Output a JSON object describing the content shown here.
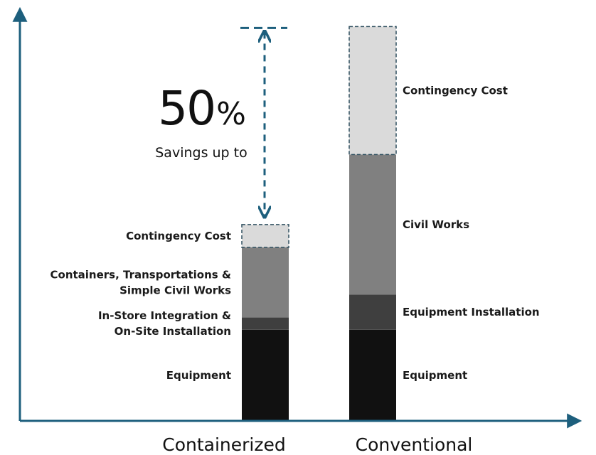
{
  "chart_data": {
    "type": "bar",
    "stacked": true,
    "categories": [
      "Containerized",
      "Conventional"
    ],
    "stacks": [
      {
        "category": "Containerized",
        "segments": [
          {
            "label": "Equipment",
            "value": 26,
            "color": "#111111",
            "dashed": false
          },
          {
            "label": "In-Store Integration & On-Site Installation",
            "value": 3.5,
            "color": "#3f3f3f",
            "dashed": false
          },
          {
            "label": "Containers, Transportations & Simple Civil Works",
            "value": 20,
            "color": "#808080",
            "dashed": false
          },
          {
            "label": "Contingency Cost",
            "value": 6.5,
            "color": "#dadada",
            "dashed": true
          }
        ]
      },
      {
        "category": "Conventional",
        "segments": [
          {
            "label": "Equipment",
            "value": 26,
            "color": "#111111",
            "dashed": false
          },
          {
            "label": "Equipment Installation",
            "value": 10,
            "color": "#3f3f3f",
            "dashed": false
          },
          {
            "label": "Civil Works",
            "value": 40,
            "color": "#808080",
            "dashed": false
          },
          {
            "label": "Contingency Cost",
            "value": 36.5,
            "color": "#dadada",
            "dashed": true
          }
        ]
      }
    ],
    "annotation": {
      "value": "50%",
      "text": "Savings up to"
    },
    "ylim": [
      0,
      114
    ],
    "grid": false,
    "axis_color": "#1d5f7d"
  }
}
